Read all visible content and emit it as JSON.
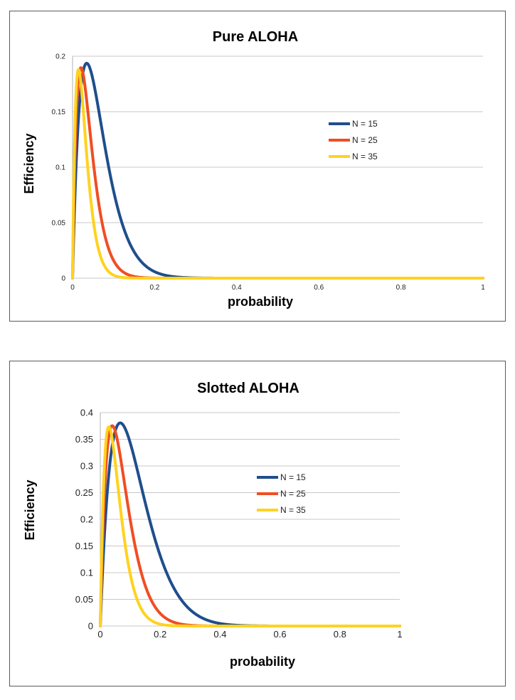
{
  "chart_data": [
    {
      "type": "line",
      "title": "Pure ALOHA",
      "xlabel": "probability",
      "ylabel": "Efficiency",
      "xlim": [
        0,
        1
      ],
      "ylim": [
        0,
        0.2
      ],
      "x_ticks": [
        "0",
        "0.2",
        "0.4",
        "0.6",
        "0.8",
        "1"
      ],
      "y_ticks": [
        "0",
        "0.05",
        "0.1",
        "0.15",
        "0.2"
      ],
      "grid": "horizontal",
      "legend": "right",
      "formula": "pure",
      "series": [
        {
          "name": "N = 15",
          "n": 15,
          "color": "#1f4e8c"
        },
        {
          "name": "N = 25",
          "n": 25,
          "color": "#f04e23"
        },
        {
          "name": "N = 35",
          "n": 35,
          "color": "#ffd21f"
        }
      ]
    },
    {
      "type": "line",
      "title": "Slotted ALOHA",
      "xlabel": "probability",
      "ylabel": "Efficiency",
      "xlim": [
        0,
        1
      ],
      "ylim": [
        0,
        0.4
      ],
      "x_ticks": [
        "0",
        "0.2",
        "0.4",
        "0.6",
        "0.8",
        "1"
      ],
      "y_ticks": [
        "0",
        "0.05",
        "0.1",
        "0.15",
        "0.2",
        "0.25",
        "0.3",
        "0.35",
        "0.4"
      ],
      "grid": "horizontal",
      "legend": "right",
      "formula": "slotted",
      "series": [
        {
          "name": "N = 15",
          "n": 15,
          "color": "#1f4e8c"
        },
        {
          "name": "N = 25",
          "n": 25,
          "color": "#f04e23"
        },
        {
          "name": "N = 35",
          "n": 35,
          "color": "#ffd21f"
        }
      ]
    }
  ]
}
